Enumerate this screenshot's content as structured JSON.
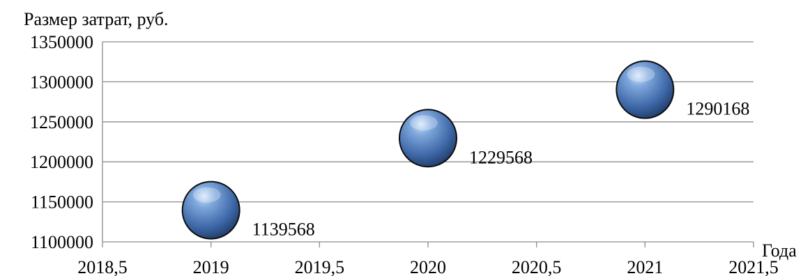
{
  "chart_data": {
    "type": "bubble",
    "ylabel": "Размер затрат, руб.",
    "xlabel": "Года",
    "x": [
      2019,
      2020,
      2021
    ],
    "y": [
      1139568,
      1229568,
      1290168
    ],
    "data_labels": [
      "1139568",
      "1229568",
      "1290168"
    ],
    "xlim": [
      2018.5,
      2021.5
    ],
    "ylim": [
      1100000,
      1350000
    ],
    "x_ticks": [
      "2018,5",
      "2019",
      "2019,5",
      "2020",
      "2020,5",
      "2021",
      "2021,5"
    ],
    "y_ticks": [
      "1100000",
      "1150000",
      "1200000",
      "1250000",
      "1300000",
      "1350000"
    ],
    "grid": true,
    "series_color": "#4a7cc0"
  }
}
